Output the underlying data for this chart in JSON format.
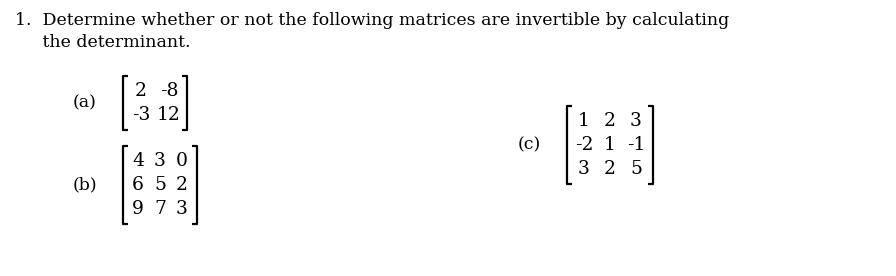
{
  "background_color": "#ffffff",
  "text_color": "#000000",
  "title_line1": "1.  Determine whether or not the following matrices are invertible by calculating",
  "title_line2": "     the determinant.",
  "label_a": "(a)",
  "label_b": "(b)",
  "label_c": "(c)",
  "matrix_a": [
    [
      "2",
      "-8"
    ],
    [
      "-3",
      "12"
    ]
  ],
  "matrix_b": [
    [
      "4",
      "3",
      "0"
    ],
    [
      "6",
      "5",
      "2"
    ],
    [
      "9",
      "7",
      "3"
    ]
  ],
  "matrix_c": [
    [
      "1",
      "2",
      "3"
    ],
    [
      "-2",
      "1",
      "-1"
    ],
    [
      "3",
      "2",
      "5"
    ]
  ],
  "font_size_title": 12.5,
  "font_size_matrix": 13.5,
  "font_size_label": 12.5,
  "font_family": "DejaVu Serif",
  "fig_width": 8.96,
  "fig_height": 2.76,
  "dpi": 100
}
